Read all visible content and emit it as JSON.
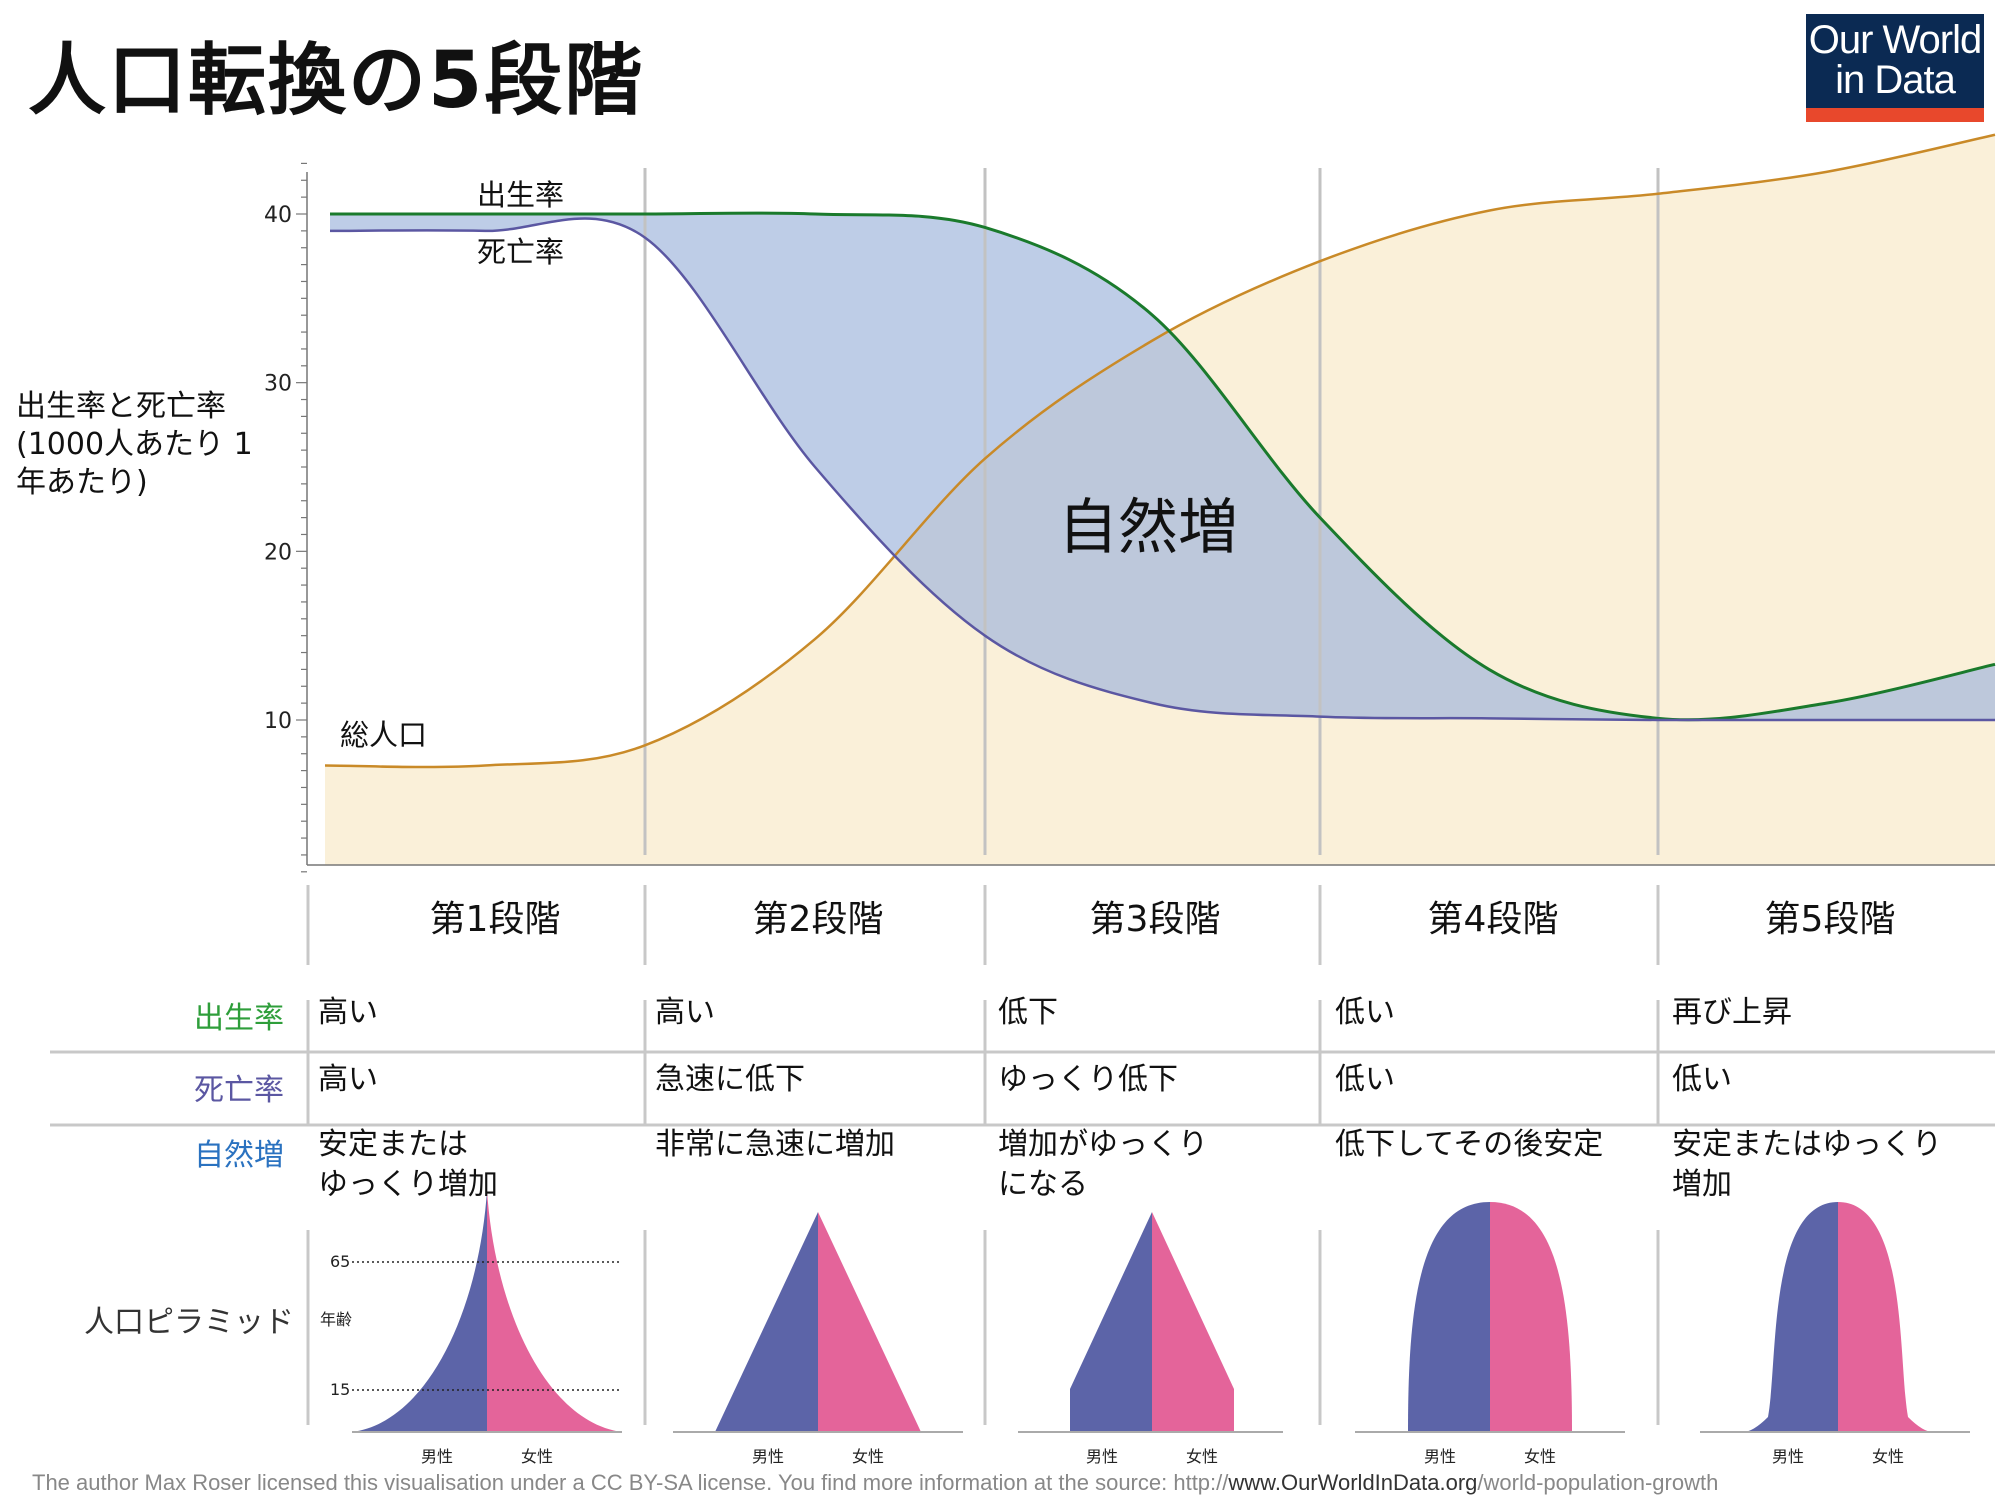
{
  "title": "人口転換の5段階",
  "logo": {
    "line1": "Our World",
    "line2": "in Data"
  },
  "colors": {
    "birth": "#1a7a2c",
    "death": "#5b57a2",
    "population": "#c98a28",
    "male": "#5c64a8",
    "female": "#e4649a"
  },
  "chart_data": {
    "type": "line",
    "ylabel": "出生率と死亡率 (1000人あたり 1年あたり)",
    "ylim": [
      0,
      43
    ],
    "yticks": [
      10,
      20,
      30,
      40
    ],
    "x": [
      0,
      0.5,
      1,
      1.5,
      2,
      2.5,
      3,
      3.5,
      4,
      4.5,
      5
    ],
    "series": [
      {
        "name": "出生率",
        "values": [
          40,
          40,
          40,
          40,
          39.2,
          34,
          22,
          13,
          10.1,
          11,
          13.3
        ]
      },
      {
        "name": "死亡率",
        "values": [
          39,
          39,
          38.6,
          25,
          15,
          11,
          10.2,
          10.1,
          10,
          10,
          10
        ]
      },
      {
        "name": "総人口",
        "values": [
          7.3,
          7.3,
          8.5,
          14.8,
          25.5,
          32.5,
          37.2,
          40.2,
          41.2,
          42.5,
          44.7
        ]
      }
    ],
    "annotation": "自然増",
    "stage_boundaries": [
      1,
      2,
      3,
      4
    ]
  },
  "labels": {
    "birth": "出生率",
    "death": "死亡率",
    "population": "総人口",
    "natural_increase": "自然増"
  },
  "stages": [
    "第1段階",
    "第2段階",
    "第3段階",
    "第4段階",
    "第5段階"
  ],
  "table": {
    "rows": [
      {
        "label": "出生率",
        "values": [
          "高い",
          "高い",
          "低下",
          "低い",
          "再び上昇"
        ]
      },
      {
        "label": "死亡率",
        "values": [
          "高い",
          "急速に低下",
          "ゆっくり低下",
          "低い",
          "低い"
        ]
      },
      {
        "label": "自然増",
        "values": [
          "安定または\nゆっくり増加",
          "非常に急速に増加",
          "増加がゆっくり\nになる",
          "低下してその後安定",
          "安定またはゆっくり\n増加"
        ]
      }
    ]
  },
  "pyramid": {
    "label": "人口ピラミッド",
    "age_label": "年齢",
    "age_marks": [
      "65",
      "15"
    ],
    "male": "男性",
    "female": "女性"
  },
  "footer": {
    "text": "The author Max Roser licensed this visualisation under a CC BY-SA license. You find more information at the source: http://",
    "site": "www.OurWorldInData.org",
    "path": "/world-population-growth"
  }
}
